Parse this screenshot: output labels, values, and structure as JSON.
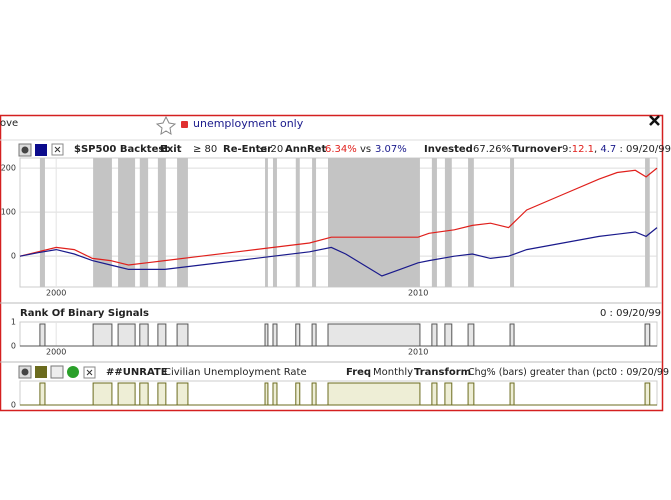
{
  "window": {
    "tab_fragment": "ove",
    "title": "unemployment only"
  },
  "chart_data": [
    {
      "type": "line",
      "title": "$SP500 Backtest",
      "header": {
        "exit_label": "Exit",
        "exit_value": "≥ 80",
        "reenter_label": "Re-Enter",
        "reenter_value": "≤ 20",
        "annret_label": "AnnRet",
        "annret_strategy": "6.34%",
        "vs": "vs",
        "annret_benchmark": "3.07%",
        "invested_label": "Invested",
        "invested_value": "67.26%",
        "turnover_label": "Turnover",
        "turnover_prefix": "9:",
        "turnover_strategy": "12.1",
        "turnover_sep": ",",
        "turnover_benchmark": "4.7",
        "date": ": 09/20/99"
      },
      "x": [
        1999,
        1999.5,
        2000,
        2000.5,
        2001,
        2001.5,
        2002,
        2002.5,
        2003,
        2004,
        2005,
        2006,
        2007,
        2007.6,
        2008,
        2008.5,
        2009,
        2009.5,
        2010,
        2010.3,
        2011,
        2011.5,
        2012,
        2012.5,
        2013,
        2014,
        2015,
        2015.5,
        2016,
        2016.3,
        2016.6
      ],
      "series": [
        {
          "color": "#e0201c",
          "values": [
            0,
            10,
            20,
            15,
            -5,
            -10,
            -20,
            -15,
            -10,
            0,
            10,
            20,
            30,
            43,
            43,
            43,
            43,
            43,
            43,
            52,
            60,
            70,
            75,
            65,
            105,
            140,
            175,
            190,
            195,
            180,
            200
          ]
        },
        {
          "color": "#1a1a8c",
          "values": [
            0,
            8,
            15,
            5,
            -10,
            -20,
            -30,
            -30,
            -30,
            -20,
            -10,
            0,
            10,
            20,
            5,
            -20,
            -45,
            -30,
            -15,
            -10,
            0,
            5,
            -5,
            0,
            15,
            30,
            45,
            50,
            55,
            45,
            65
          ]
        }
      ],
      "xlim": [
        1999.0,
        2016.6
      ],
      "xticks": [
        2000,
        2010
      ],
      "ylim": [
        -70,
        223
      ],
      "yticks": [
        0,
        100,
        200
      ],
      "grid": true,
      "shading_color": "#c4c4c4"
    },
    {
      "type": "step",
      "title": "Rank Of Binary Signals",
      "right_label": "0 : 09/20/99",
      "intervals": [
        [
          1999.55,
          1999.69
        ],
        [
          2001.02,
          2001.54
        ],
        [
          2001.71,
          2002.18
        ],
        [
          2002.31,
          2002.54
        ],
        [
          2002.81,
          2003.03
        ],
        [
          2003.34,
          2003.64
        ],
        [
          2005.77,
          2005.85
        ],
        [
          2005.99,
          2006.1
        ],
        [
          2006.62,
          2006.73
        ],
        [
          2007.07,
          2007.18
        ],
        [
          2007.51,
          2010.05
        ],
        [
          2010.38,
          2010.52
        ],
        [
          2010.74,
          2010.93
        ],
        [
          2011.38,
          2011.54
        ],
        [
          2012.54,
          2012.65
        ],
        [
          2016.27,
          2016.4
        ]
      ],
      "xlim": [
        1999.0,
        2016.6
      ],
      "xticks": [
        2000,
        2010
      ],
      "ylim": [
        0,
        1
      ],
      "yticks": [
        0,
        1
      ],
      "color": "#555555",
      "fill": "#e6e6e6"
    },
    {
      "type": "step",
      "title": "##UNRATE",
      "subtitle": "Civilian Unemployment Rate",
      "header": {
        "freq_label": "Freq",
        "freq_value": "Monthly",
        "transform_label": "Transform",
        "transform_value": "Chg% (bars) greater than (pct0 : 09/20/99"
      },
      "intervals": [
        [
          1999.55,
          1999.69
        ],
        [
          2001.02,
          2001.54
        ],
        [
          2001.71,
          2002.18
        ],
        [
          2002.31,
          2002.54
        ],
        [
          2002.81,
          2003.03
        ],
        [
          2003.34,
          2003.64
        ],
        [
          2005.77,
          2005.85
        ],
        [
          2005.99,
          2006.1
        ],
        [
          2006.62,
          2006.73
        ],
        [
          2007.07,
          2007.18
        ],
        [
          2007.51,
          2010.05
        ],
        [
          2010.38,
          2010.52
        ],
        [
          2010.74,
          2010.93
        ],
        [
          2011.38,
          2011.54
        ],
        [
          2012.54,
          2012.65
        ],
        [
          2016.27,
          2016.4
        ]
      ],
      "xlim": [
        1999.0,
        2016.6
      ],
      "ylim": [
        0,
        1
      ],
      "yticks": [
        0
      ],
      "color": "#6b6b1e",
      "fill": "#eeeed6"
    }
  ]
}
